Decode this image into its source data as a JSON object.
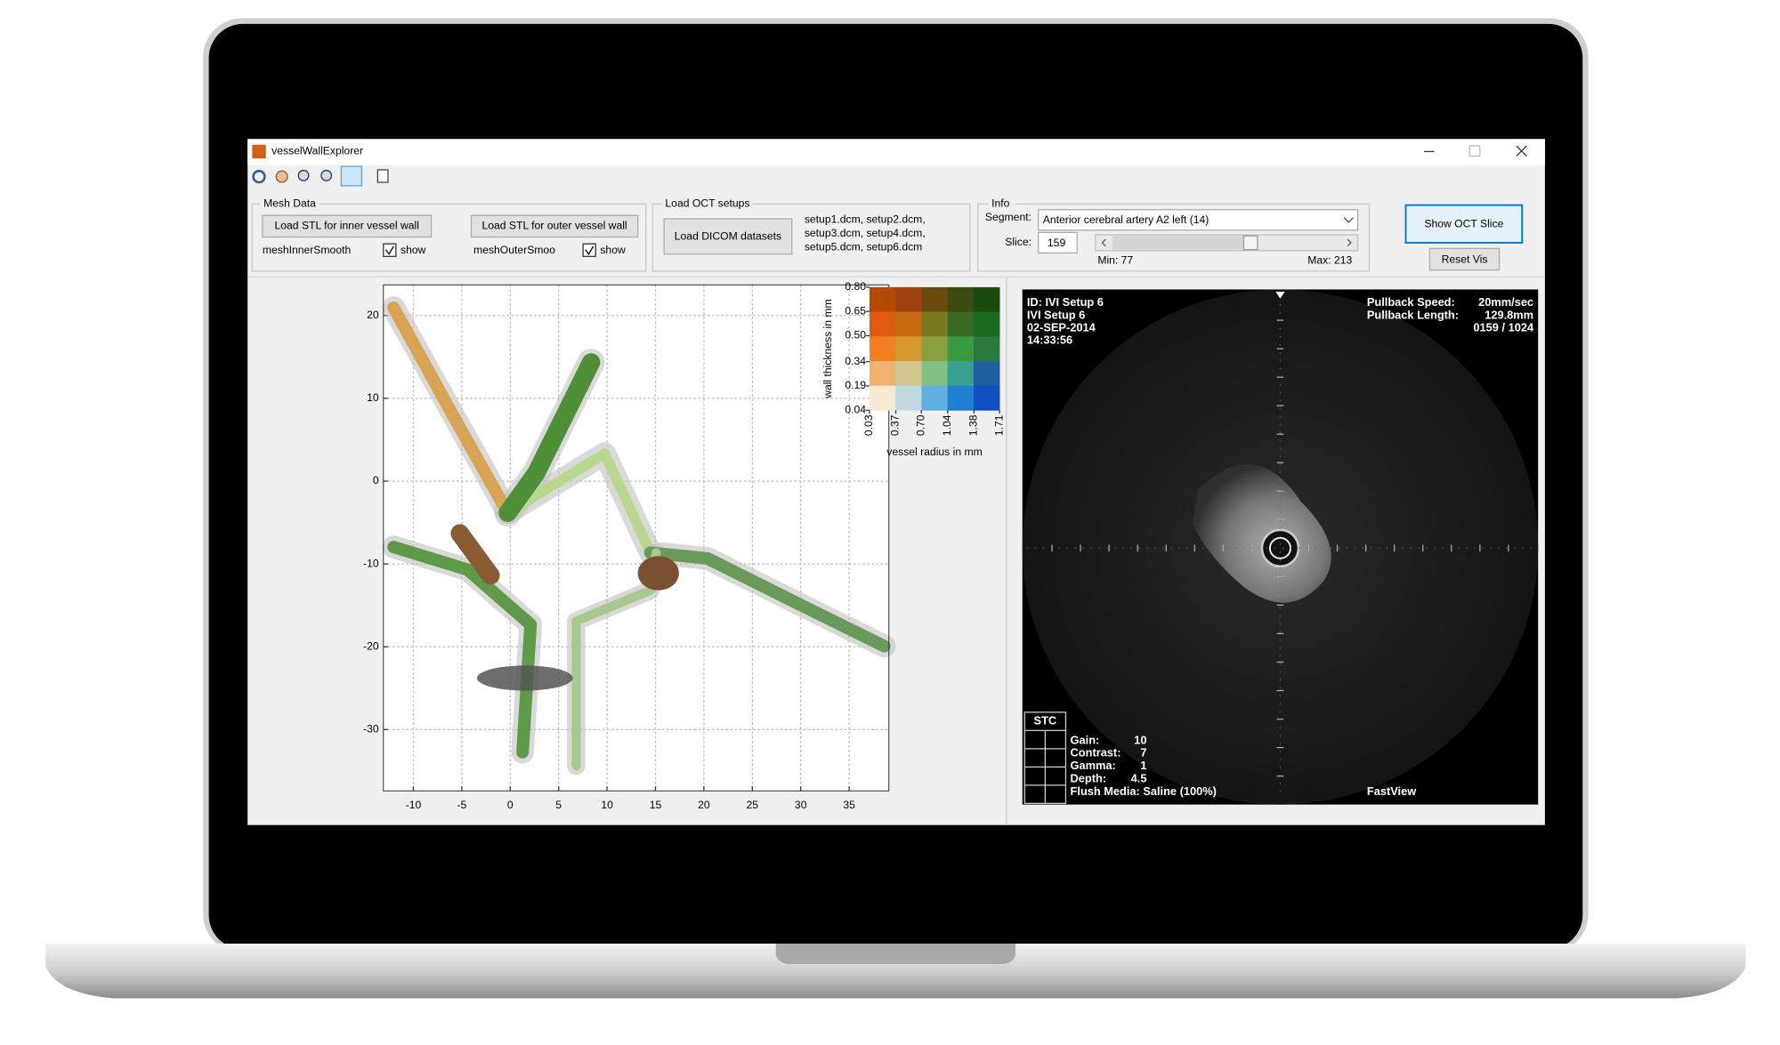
{
  "window": {
    "title": "vesselWallExplorer"
  },
  "mesh_data": {
    "title": "Mesh Data",
    "inner_button": "Load STL for inner vessel wall",
    "outer_button": "Load STL for outer vessel wall",
    "inner_label": "meshInnerSmooth",
    "outer_label": "meshOuterSmoo",
    "inner_show": "show",
    "outer_show": "show"
  },
  "oct_setups": {
    "title": "Load OCT setups",
    "button": "Load DICOM datasets",
    "files": [
      "setup1.dcm, setup2.dcm,",
      "setup3.dcm, setup4.dcm,",
      "setup5.dcm, setup6.dcm"
    ]
  },
  "info": {
    "title": "Info",
    "segment_label": "Segment:",
    "segment": "Anterior cerebral artery A2 left (14)",
    "slice_label": "Slice:",
    "slice": "159",
    "min": "Min: 77",
    "max": "Max: 213"
  },
  "buttons": {
    "show_oct": "Show OCT Slice",
    "reset": "Reset Vis"
  },
  "plot": {
    "xlim": [
      -13.1,
      39.1
    ],
    "ylim": [
      -37.4,
      23.7
    ],
    "xticks": [
      -10,
      -5,
      0,
      5,
      10,
      15,
      20,
      25,
      30,
      35
    ],
    "yticks": [
      20,
      10,
      0,
      -10,
      -20,
      -30
    ],
    "grid": true
  },
  "colorbar": {
    "xlabel": "vessel radius in mm",
    "ylabel": "wall thickness in mm",
    "xlim": [
      0.03,
      1.71
    ],
    "ylim": [
      0.04,
      0.8
    ],
    "xticks": [
      0.03,
      0.37,
      {
        "value": 0.7,
        "label": "0.70"
      },
      1.04,
      1.38,
      1.71
    ],
    "yticks": [
      {
        "value": 0.8,
        "label": "0.80"
      },
      0.65,
      {
        "value": 0.5,
        "label": "0.50"
      },
      0.34,
      0.19,
      0.04
    ]
  },
  "oct": {
    "top_left": [
      "ID: IVI Setup 6",
      "IVI Setup 6",
      "02-SEP-2014",
      "14:33:56"
    ],
    "pullback_speed_label": "Pullback Speed:",
    "pullback_speed": "20mm/sec",
    "pullback_length_label": "Pullback Length:",
    "pullback_length": "129.8mm",
    "frame": "0159 / 1024",
    "stc": "STC",
    "settings": [
      [
        "Gain:",
        "10"
      ],
      [
        "Contrast:",
        "7"
      ],
      [
        "Gamma:",
        "1"
      ],
      [
        "Depth:",
        "4.5"
      ]
    ],
    "flush": "Flush Media: Saline (100%)",
    "mode": "FastView"
  }
}
